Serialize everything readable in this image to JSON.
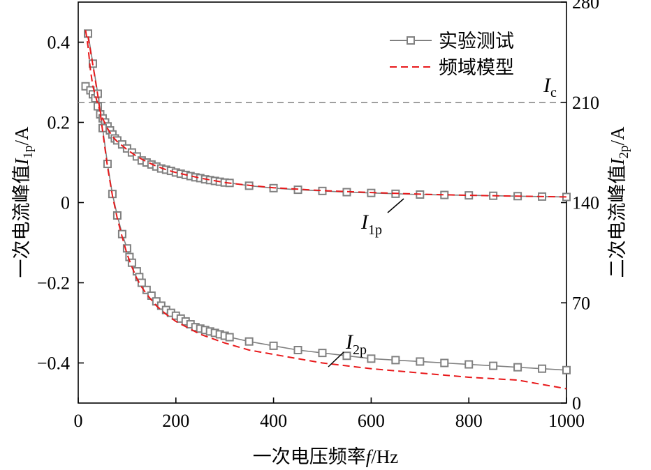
{
  "chart_data": {
    "type": "line",
    "x_axis": {
      "title_prefix": "一次电压频率",
      "title_var": "f",
      "title_unit": "/Hz",
      "range": [
        0,
        1000
      ],
      "ticks": [
        0,
        200,
        400,
        600,
        800,
        1000
      ],
      "tick_labels": [
        "0",
        "200",
        "400",
        "600",
        "800",
        "1000"
      ]
    },
    "y_left": {
      "title_prefix": "一次电流峰值",
      "title_var": "I",
      "title_sub": "1p",
      "title_unit": "/A",
      "range": [
        -0.5,
        0.5
      ],
      "ticks": [
        -0.4,
        -0.2,
        0,
        0.2,
        0.4
      ],
      "tick_labels": [
        "−0.4",
        "−0.2",
        "0",
        "0.2",
        "0.4"
      ]
    },
    "y_right": {
      "title_prefix": "二次电流峰值",
      "title_var": "I",
      "title_sub": "2p",
      "title_unit": "/A",
      "range": [
        0,
        280
      ],
      "ticks": [
        0,
        70,
        140,
        210,
        280
      ],
      "tick_labels": [
        "0",
        "70",
        "140",
        "210",
        "280"
      ]
    },
    "legend": {
      "position": "top-right",
      "entries": [
        {
          "label": "实验测试",
          "style": "gray line with square markers",
          "color": "#808080"
        },
        {
          "label": "频域模型",
          "style": "red dashed line",
          "color": "#e8191b"
        }
      ]
    },
    "reference_line": {
      "label_var": "I",
      "label_sub": "c",
      "y_right_value": 210,
      "style": "gray dashed"
    },
    "annotations": [
      {
        "var": "I",
        "sub": "1p",
        "series": "I1p"
      },
      {
        "var": "I",
        "sub": "2p",
        "series": "I2p"
      }
    ],
    "series": [
      {
        "name": "实验测试",
        "curve": "I1p",
        "axis": "left",
        "color": "#808080",
        "x": [
          15,
          25,
          30,
          35,
          40,
          45,
          50,
          55,
          60,
          65,
          70,
          75,
          80,
          90,
          100,
          110,
          120,
          130,
          140,
          150,
          160,
          170,
          180,
          190,
          200,
          210,
          220,
          230,
          240,
          250,
          260,
          270,
          280,
          290,
          300,
          310,
          350,
          400,
          450,
          500,
          550,
          600,
          650,
          700,
          750,
          800,
          850,
          900,
          950,
          1000
        ],
        "y": [
          0.29,
          0.28,
          0.27,
          0.26,
          0.24,
          0.22,
          0.21,
          0.2,
          0.19,
          0.18,
          0.17,
          0.16,
          0.155,
          0.145,
          0.135,
          0.125,
          0.115,
          0.105,
          0.1,
          0.095,
          0.09,
          0.085,
          0.082,
          0.079,
          0.075,
          0.072,
          0.069,
          0.066,
          0.063,
          0.061,
          0.058,
          0.056,
          0.054,
          0.052,
          0.05,
          0.049,
          0.042,
          0.036,
          0.032,
          0.029,
          0.026,
          0.024,
          0.022,
          0.02,
          0.019,
          0.018,
          0.017,
          0.016,
          0.015,
          0.014
        ]
      },
      {
        "name": "频域模型",
        "curve": "I1p",
        "axis": "left",
        "color": "#e8191b",
        "x": [
          15,
          20,
          25,
          30,
          40,
          50,
          60,
          70,
          80,
          90,
          100,
          120,
          140,
          160,
          180,
          200,
          250,
          300,
          350,
          400,
          500,
          600,
          700,
          800,
          900,
          1000
        ],
        "y": [
          0.43,
          0.39,
          0.33,
          0.29,
          0.245,
          0.21,
          0.185,
          0.165,
          0.152,
          0.142,
          0.132,
          0.115,
          0.102,
          0.091,
          0.082,
          0.075,
          0.061,
          0.05,
          0.043,
          0.037,
          0.03,
          0.025,
          0.021,
          0.018,
          0.016,
          0.014
        ]
      },
      {
        "name": "实验测试",
        "curve": "I2p",
        "axis": "right",
        "color": "#808080",
        "x": [
          20,
          30,
          40,
          50,
          60,
          70,
          80,
          90,
          100,
          105,
          110,
          120,
          125,
          130,
          140,
          150,
          160,
          170,
          180,
          190,
          200,
          210,
          220,
          230,
          240,
          250,
          260,
          270,
          280,
          290,
          300,
          310,
          350,
          400,
          450,
          500,
          550,
          600,
          650,
          700,
          750,
          800,
          850,
          900,
          950,
          1000
        ],
        "y": [
          258,
          237,
          216,
          192,
          167,
          146,
          131,
          118,
          108,
          102,
          98,
          92,
          88,
          84,
          79,
          75,
          71,
          68,
          65,
          63,
          61,
          59,
          57,
          55,
          53,
          52,
          51,
          50,
          49,
          48,
          47,
          46,
          43,
          40,
          37,
          35,
          33,
          31,
          30,
          29,
          28,
          27,
          26,
          25,
          24,
          23
        ]
      },
      {
        "name": "频域模型",
        "curve": "I2p",
        "axis": "right",
        "color": "#e8191b",
        "x": [
          20,
          30,
          40,
          50,
          60,
          70,
          80,
          90,
          100,
          110,
          120,
          130,
          140,
          150,
          160,
          180,
          200,
          250,
          300,
          350,
          400,
          500,
          600,
          700,
          800,
          900,
          1000
        ],
        "y": [
          256,
          236,
          215,
          190,
          165,
          145,
          129,
          116,
          104,
          95,
          87,
          81,
          76,
          72,
          68,
          62,
          57,
          48,
          42,
          37,
          34,
          28,
          24,
          21,
          18,
          16,
          10
        ]
      }
    ]
  }
}
